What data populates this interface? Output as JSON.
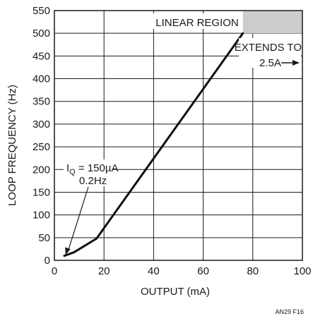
{
  "chart_data": {
    "type": "line",
    "xlabel": "OUTPUT (mA)",
    "ylabel": "LOOP FREQUENCY (Hz)",
    "xlim": [
      0,
      100
    ],
    "ylim": [
      0,
      550
    ],
    "x_ticks": [
      0,
      20,
      40,
      60,
      80,
      100
    ],
    "y_ticks": [
      0,
      50,
      100,
      150,
      200,
      250,
      300,
      350,
      400,
      450,
      500,
      550
    ],
    "grid": true,
    "series": [
      {
        "x": [
          4,
          8,
          17,
          76
        ],
        "y": [
          10,
          18,
          48,
          500
        ]
      }
    ],
    "shaded_region": {
      "x": [
        76,
        100
      ],
      "y": [
        500,
        550
      ],
      "color": "#cccccc"
    },
    "annotations": {
      "linear_region": "LINEAR REGION",
      "extends_line1": "EXTENDS TO",
      "extends_line2": "2.5A",
      "iq_prefix": "I",
      "iq_sub": "Q",
      "iq_value": " = 150µA",
      "iq_freq": "0.2Hz",
      "iq_arrow_target": {
        "x": 4.5,
        "y": 12
      }
    },
    "figure_label": "AN29 F16"
  }
}
